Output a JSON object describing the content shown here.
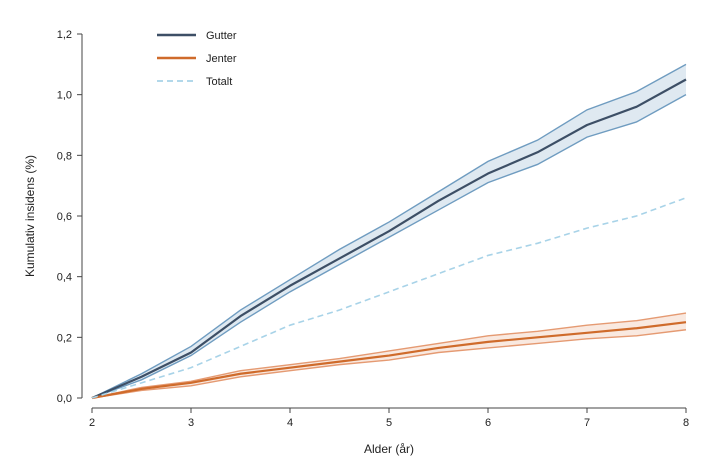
{
  "chart_data": {
    "type": "line",
    "title": "",
    "xlabel": "Alder (år)",
    "ylabel": "Kumulativ insidens (%)",
    "xlim": [
      2,
      8
    ],
    "ylim": [
      0,
      1.2
    ],
    "x_ticks": [
      2,
      3,
      4,
      5,
      6,
      7,
      8
    ],
    "x_tick_labels": [
      "2",
      "3",
      "4",
      "5",
      "6",
      "7",
      "8"
    ],
    "y_ticks": [
      0,
      0.2,
      0.4,
      0.6,
      0.8,
      1.0,
      1.2
    ],
    "y_tick_labels": [
      "0,0",
      "0,2",
      "0,4",
      "0,6",
      "0,8",
      "1,0",
      "1,2"
    ],
    "grid": false,
    "legend_position": "top-left",
    "x": [
      2.0,
      2.5,
      3.0,
      3.5,
      4.0,
      4.5,
      5.0,
      5.5,
      6.0,
      6.5,
      7.0,
      7.5,
      8.0
    ],
    "series": [
      {
        "name": "Gutter",
        "color": "#3d4f66",
        "band_color": "#6f9cc0",
        "values": [
          0.0,
          0.07,
          0.15,
          0.27,
          0.37,
          0.46,
          0.55,
          0.65,
          0.74,
          0.81,
          0.9,
          0.96,
          1.05
        ],
        "lower": [
          0.0,
          0.06,
          0.14,
          0.25,
          0.35,
          0.44,
          0.53,
          0.62,
          0.71,
          0.77,
          0.86,
          0.91,
          1.0
        ],
        "upper": [
          0.0,
          0.08,
          0.17,
          0.29,
          0.39,
          0.49,
          0.58,
          0.68,
          0.78,
          0.85,
          0.95,
          1.01,
          1.1
        ]
      },
      {
        "name": "Jenter",
        "color": "#cf6b2b",
        "band_color": "#e59a72",
        "values": [
          0.0,
          0.03,
          0.05,
          0.08,
          0.1,
          0.12,
          0.14,
          0.165,
          0.185,
          0.2,
          0.215,
          0.23,
          0.25
        ],
        "lower": [
          0.0,
          0.025,
          0.04,
          0.07,
          0.09,
          0.11,
          0.125,
          0.15,
          0.165,
          0.18,
          0.195,
          0.205,
          0.225
        ],
        "upper": [
          0.0,
          0.035,
          0.055,
          0.09,
          0.11,
          0.13,
          0.155,
          0.18,
          0.205,
          0.22,
          0.24,
          0.255,
          0.28
        ]
      },
      {
        "name": "Totalt",
        "color": "#a8d3e8",
        "dashed": true,
        "values": [
          0.0,
          0.05,
          0.1,
          0.17,
          0.24,
          0.29,
          0.35,
          0.41,
          0.47,
          0.51,
          0.56,
          0.6,
          0.66
        ]
      }
    ]
  }
}
